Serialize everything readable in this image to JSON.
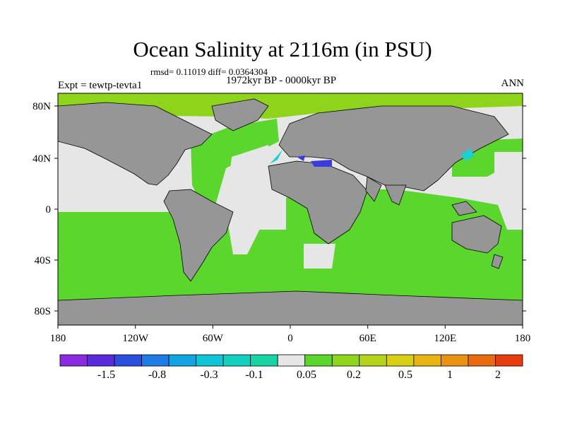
{
  "figure": {
    "title": "Ocean Salinity at 2116m (in PSU)",
    "stats": "rmsd= 0.11019 diff= 0.0364304",
    "period": "1972kyr BP - 0000kyr BP",
    "experiment": "Expt = tewtp-tevta1",
    "season": "ANN"
  },
  "axes": {
    "lat_ticks": [
      "80N",
      "40N",
      "0",
      "40S",
      "80S"
    ],
    "lon_ticks": [
      "180",
      "120W",
      "60W",
      "0",
      "60E",
      "120E",
      "180"
    ]
  },
  "colorbar": {
    "labels": [
      "-1.5",
      "-0.8",
      "-0.3",
      "-0.1",
      "0.05",
      "0.2",
      "0.5",
      "1",
      "2"
    ],
    "colors": [
      "#8a2be2",
      "#5a2bdc",
      "#2c4fe0",
      "#1e7be6",
      "#12a3e2",
      "#10c4d8",
      "#12cfc0",
      "#18d4a4",
      "#e6e6e6",
      "#5bd62c",
      "#8ed41a",
      "#b6d21a",
      "#d8ce16",
      "#e8b414",
      "#ea9212",
      "#ea6a10",
      "#e63c0e"
    ]
  },
  "colors": {
    "land": "#969696",
    "ocean_small_change": "#e6e6e6",
    "ocean_positive": "#5bd62c",
    "ocean_positive_mid": "#8ed41a",
    "ocean_negative": "#1ad0d4",
    "ocean_strong_negative": "#3c3cdc",
    "coast": "#000000"
  }
}
